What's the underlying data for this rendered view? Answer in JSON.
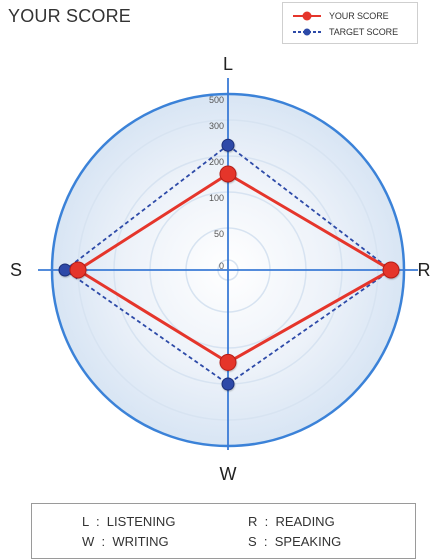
{
  "header": {
    "title": "YOUR SCORE"
  },
  "legend": {
    "your_score_label": "YOUR SCORE",
    "target_score_label": "TARGET SCORE"
  },
  "chart_data": {
    "type": "radar",
    "axes": [
      "L",
      "R",
      "W",
      "S"
    ],
    "axis_order_clockwise": [
      "L",
      "R",
      "W",
      "S"
    ],
    "ring_labels": [
      "500",
      "300",
      "200",
      "100",
      "50",
      "0"
    ],
    "ring_values": [
      500,
      300,
      200,
      100,
      50,
      0
    ],
    "series": [
      {
        "name": "YOUR SCORE",
        "values": [
          150,
          400,
          140,
          300
        ],
        "color": "#e5352b",
        "line_style": "solid"
      },
      {
        "name": "TARGET SCORE",
        "values": [
          230,
          400,
          200,
          400
        ],
        "color": "#2d4aa8",
        "line_style": "dashed"
      }
    ],
    "grid": true,
    "legend_position": "top-right"
  },
  "colors": {
    "axis_blue": "#3b7bd6",
    "outer_ring": "#3b82d8",
    "your_score": "#e5352b",
    "target_score": "#2d4aa8",
    "background": "#ffffff"
  },
  "abbreviations": {
    "l": "L  :  LISTENING",
    "r": "R  :  READING",
    "w": "W  :  WRITING",
    "s": "S  :  SPEAKING"
  }
}
